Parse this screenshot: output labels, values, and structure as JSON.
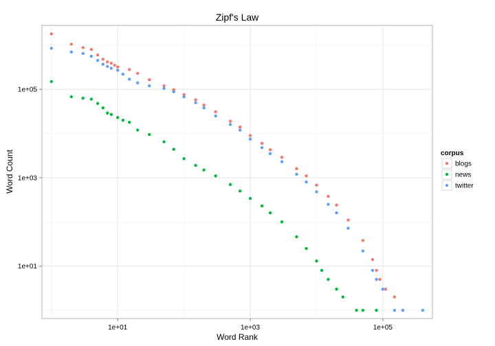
{
  "chart_data": {
    "type": "scatter",
    "title": "Zipf's Law",
    "xlabel": "Word Rank",
    "ylabel": "Word Count",
    "x_scale": "log10",
    "y_scale": "log10",
    "xlim": [
      0.72,
      560000
    ],
    "ylim": [
      0.65,
      2800000
    ],
    "x_ticks": [
      {
        "value": 10,
        "label": "1e+01"
      },
      {
        "value": 1000,
        "label": "1e+03"
      },
      {
        "value": 100000,
        "label": "1e+05"
      }
    ],
    "y_ticks": [
      {
        "value": 10,
        "label": "1e+01"
      },
      {
        "value": 1000,
        "label": "1e+03"
      },
      {
        "value": 100000,
        "label": "1e+05"
      }
    ],
    "grid": true,
    "legend": {
      "title": "corpus",
      "position": "right"
    },
    "series": [
      {
        "name": "blogs",
        "color": "#F8766D",
        "points": [
          [
            1,
            1800000
          ],
          [
            2,
            1050000
          ],
          [
            3,
            880000
          ],
          [
            4,
            800000
          ],
          [
            5,
            600000
          ],
          [
            6,
            480000
          ],
          [
            7,
            420000
          ],
          [
            8,
            390000
          ],
          [
            9,
            350000
          ],
          [
            10,
            320000
          ],
          [
            15,
            280000
          ],
          [
            20,
            230000
          ],
          [
            30,
            165000
          ],
          [
            50,
            120000
          ],
          [
            70,
            98000
          ],
          [
            100,
            76000
          ],
          [
            150,
            58000
          ],
          [
            200,
            44000
          ],
          [
            300,
            31000
          ],
          [
            500,
            19000
          ],
          [
            700,
            14000
          ],
          [
            1000,
            9000
          ],
          [
            1500,
            6000
          ],
          [
            2000,
            4300
          ],
          [
            3000,
            2900
          ],
          [
            5000,
            1600
          ],
          [
            7000,
            1100
          ],
          [
            10000,
            680
          ],
          [
            15000,
            380
          ],
          [
            20000,
            240
          ],
          [
            30000,
            110
          ],
          [
            50000,
            38
          ],
          [
            70000,
            14
          ],
          [
            80000,
            8
          ],
          [
            90000,
            5
          ],
          [
            110000,
            3
          ],
          [
            150000,
            2
          ]
        ]
      },
      {
        "name": "news",
        "color": "#00BA38",
        "points": [
          [
            1,
            150000
          ],
          [
            2,
            68000
          ],
          [
            3,
            63000
          ],
          [
            4,
            60000
          ],
          [
            5,
            48000
          ],
          [
            6,
            38000
          ],
          [
            7,
            29000
          ],
          [
            8,
            27000
          ],
          [
            10,
            23000
          ],
          [
            12,
            20000
          ],
          [
            15,
            18000
          ],
          [
            20,
            12000
          ],
          [
            30,
            9500
          ],
          [
            50,
            6500
          ],
          [
            70,
            4400
          ],
          [
            100,
            2700
          ],
          [
            150,
            1900
          ],
          [
            200,
            1500
          ],
          [
            300,
            1100
          ],
          [
            500,
            700
          ],
          [
            700,
            500
          ],
          [
            1000,
            340
          ],
          [
            1500,
            230
          ],
          [
            2000,
            160
          ],
          [
            3000,
            100
          ],
          [
            5000,
            46
          ],
          [
            7000,
            25
          ],
          [
            10000,
            13
          ],
          [
            12000,
            8
          ],
          [
            15000,
            5
          ],
          [
            20000,
            3
          ],
          [
            25000,
            2
          ],
          [
            40000,
            1
          ],
          [
            50000,
            1
          ],
          [
            80000,
            1
          ]
        ]
      },
      {
        "name": "twitter",
        "color": "#619CFF",
        "points": [
          [
            1,
            850000
          ],
          [
            2,
            700000
          ],
          [
            3,
            650000
          ],
          [
            4,
            560000
          ],
          [
            5,
            450000
          ],
          [
            6,
            370000
          ],
          [
            7,
            330000
          ],
          [
            8,
            300000
          ],
          [
            10,
            270000
          ],
          [
            12,
            220000
          ],
          [
            15,
            170000
          ],
          [
            20,
            140000
          ],
          [
            30,
            120000
          ],
          [
            50,
            105000
          ],
          [
            70,
            88000
          ],
          [
            100,
            68000
          ],
          [
            150,
            50000
          ],
          [
            200,
            38000
          ],
          [
            300,
            25000
          ],
          [
            500,
            16000
          ],
          [
            700,
            12000
          ],
          [
            1000,
            7500
          ],
          [
            1500,
            4800
          ],
          [
            2000,
            3500
          ],
          [
            3000,
            2300
          ],
          [
            5000,
            1200
          ],
          [
            7000,
            800
          ],
          [
            10000,
            480
          ],
          [
            15000,
            250
          ],
          [
            20000,
            160
          ],
          [
            30000,
            72
          ],
          [
            50000,
            22
          ],
          [
            70000,
            8
          ],
          [
            80000,
            5
          ],
          [
            100000,
            3
          ],
          [
            150000,
            1
          ],
          [
            200000,
            1
          ],
          [
            400000,
            1
          ]
        ]
      }
    ]
  }
}
